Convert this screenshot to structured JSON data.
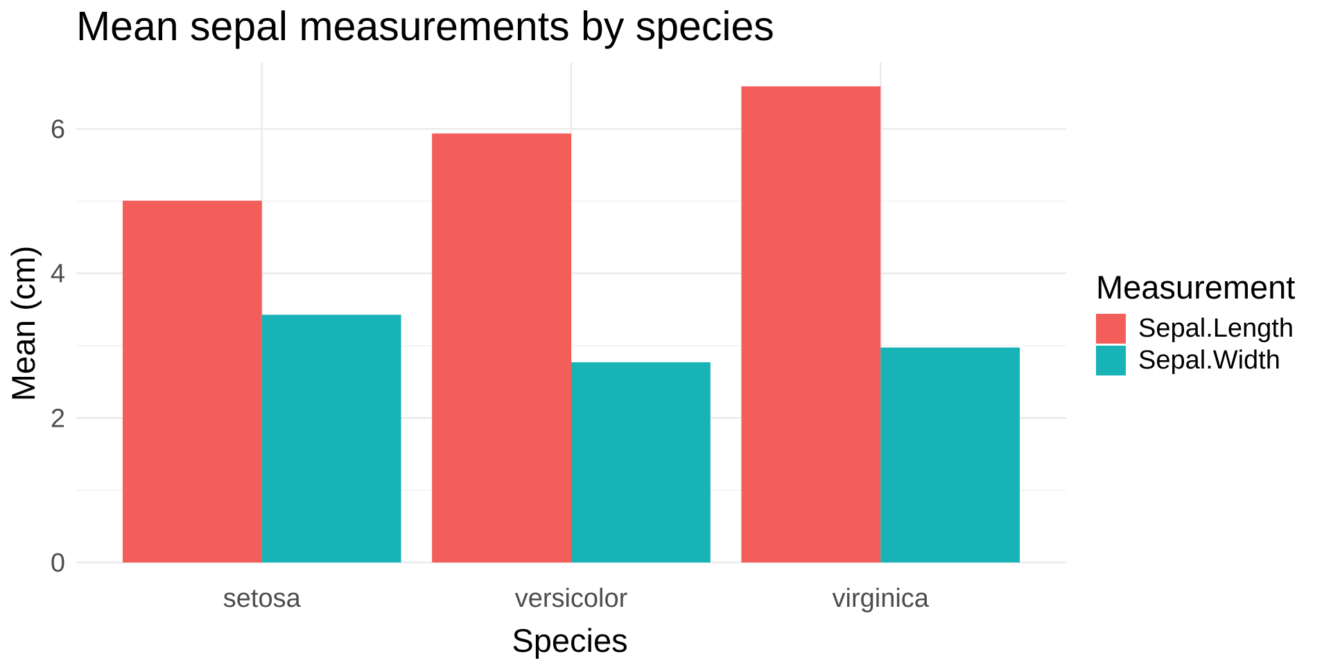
{
  "chart_data": {
    "type": "bar",
    "title": "Mean sepal measurements by species",
    "xlabel": "Species",
    "ylabel": "Mean (cm)",
    "categories": [
      "setosa",
      "versicolor",
      "virginica"
    ],
    "series": [
      {
        "name": "Sepal.Length",
        "color": "#F35E5A",
        "values": [
          5.006,
          5.936,
          6.588
        ]
      },
      {
        "name": "Sepal.Width",
        "color": "#17B3B7",
        "values": [
          3.428,
          2.77,
          2.974
        ]
      }
    ],
    "ylim": [
      0,
      6.92
    ],
    "yticks": [
      0,
      2,
      4,
      6
    ],
    "grid": true,
    "legend": {
      "title": "Measurement",
      "position": "right"
    }
  }
}
